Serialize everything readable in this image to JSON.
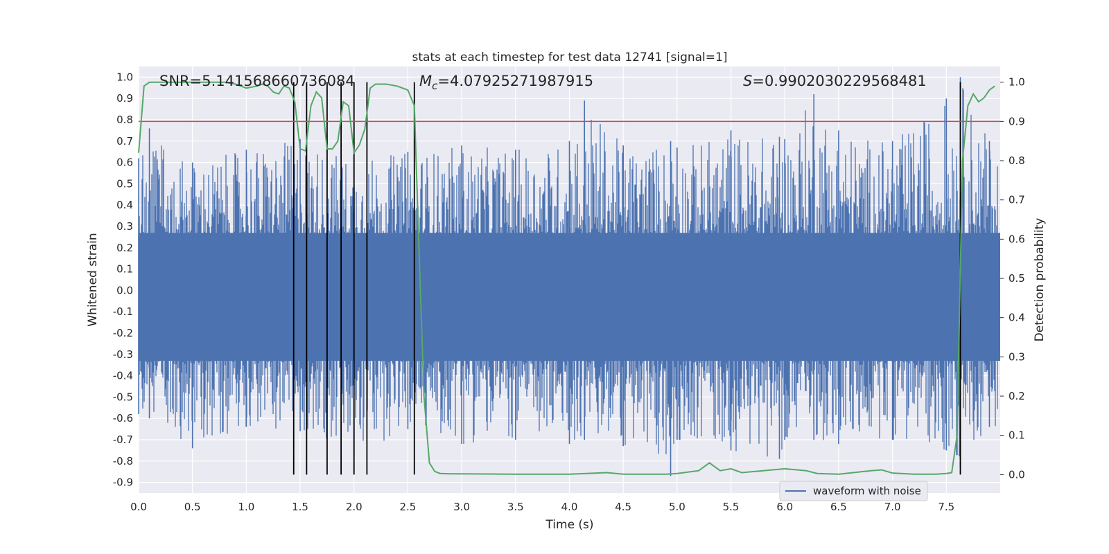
{
  "chart_data": {
    "type": "line",
    "title": "stats at each timestep for test data 12741 [signal=1]",
    "xlabel": "Time (s)",
    "ylabel": "Whitened strain",
    "ylabel_right": "Detection probability",
    "xlim": [
      0.0,
      8.0
    ],
    "ylim": [
      -0.95,
      1.05
    ],
    "ylim_right": [
      -0.047,
      1.04
    ],
    "x_ticks": [
      "0.0",
      "0.5",
      "1.0",
      "1.5",
      "2.0",
      "2.5",
      "3.0",
      "3.5",
      "4.0",
      "4.5",
      "5.0",
      "5.5",
      "6.0",
      "6.5",
      "7.0",
      "7.5"
    ],
    "y_ticks": [
      "1.0",
      "0.9",
      "0.8",
      "0.7",
      "0.6",
      "0.5",
      "0.4",
      "0.3",
      "0.2",
      "0.1",
      "0.0",
      "-0.1",
      "-0.2",
      "-0.3",
      "-0.4",
      "-0.5",
      "-0.6",
      "-0.7",
      "-0.8",
      "-0.9"
    ],
    "y_ticks_right": [
      "1.0",
      "0.9",
      "0.8",
      "0.7",
      "0.6",
      "0.5",
      "0.4",
      "0.3",
      "0.2",
      "0.1",
      "0.0"
    ],
    "grid": true,
    "legend_position": "lower-right",
    "annotations": {
      "snr": "SNR=5.141568660736084",
      "mc_symbol": "M",
      "mc_subscript": "c",
      "mc_value": "=4.07925271987915",
      "s_symbol": "S",
      "s_value": "=0.9902030229568481"
    },
    "threshold_line": {
      "value": 0.9,
      "axis": "right",
      "color": "#c44e52"
    },
    "vertical_lines_x": [
      1.44,
      1.56,
      1.75,
      1.88,
      2.0,
      2.12,
      2.56,
      7.63
    ],
    "series": [
      {
        "name": "waveform with noise",
        "color": "#4c72b0",
        "description": "dense noisy whitened strain, roughly -0.6..0.6 with spikes",
        "envelope_points_x": [
          0.0,
          0.1,
          0.5,
          1.0,
          1.5,
          2.0,
          2.5,
          3.0,
          3.5,
          4.0,
          4.14,
          4.5,
          4.94,
          5.0,
          5.5,
          5.95,
          6.0,
          6.27,
          6.5,
          7.0,
          7.5,
          7.63,
          7.9
        ],
        "envelope_max": [
          0.62,
          0.76,
          0.6,
          0.66,
          0.71,
          0.62,
          0.65,
          0.68,
          0.66,
          0.7,
          0.89,
          0.68,
          0.7,
          0.67,
          0.75,
          0.72,
          0.71,
          0.92,
          0.75,
          0.7,
          0.9,
          1.0,
          0.7
        ],
        "envelope_min": [
          -0.58,
          -0.6,
          -0.74,
          -0.64,
          -0.66,
          -0.78,
          -0.65,
          -0.72,
          -0.7,
          -0.72,
          -0.7,
          -0.73,
          -0.87,
          -0.7,
          -0.75,
          -0.79,
          -0.7,
          -0.7,
          -0.72,
          -0.7,
          -0.75,
          -0.83,
          -0.64
        ]
      },
      {
        "name": "",
        "color": "#55a868",
        "axis": "right",
        "x": [
          0.0,
          0.05,
          0.1,
          0.2,
          0.4,
          0.6,
          0.8,
          0.9,
          1.0,
          1.1,
          1.15,
          1.2,
          1.25,
          1.3,
          1.35,
          1.4,
          1.45,
          1.5,
          1.55,
          1.6,
          1.65,
          1.7,
          1.75,
          1.8,
          1.85,
          1.9,
          1.95,
          2.0,
          2.05,
          2.1,
          2.15,
          2.2,
          2.3,
          2.4,
          2.5,
          2.56,
          2.6,
          2.65,
          2.7,
          2.75,
          2.8,
          2.9,
          3.0,
          3.5,
          4.0,
          4.35,
          4.5,
          4.9,
          5.0,
          5.2,
          5.3,
          5.4,
          5.5,
          5.6,
          5.8,
          6.0,
          6.2,
          6.3,
          6.5,
          6.8,
          6.9,
          7.0,
          7.2,
          7.4,
          7.5,
          7.55,
          7.6,
          7.65,
          7.7,
          7.75,
          7.8,
          7.85,
          7.9,
          7.95
        ],
        "y": [
          0.82,
          0.99,
          1.0,
          1.0,
          1.0,
          1.0,
          1.0,
          0.995,
          0.985,
          0.99,
          0.995,
          0.99,
          0.975,
          0.97,
          0.99,
          0.985,
          0.95,
          0.83,
          0.825,
          0.94,
          0.975,
          0.96,
          0.83,
          0.83,
          0.85,
          0.95,
          0.94,
          0.82,
          0.84,
          0.88,
          0.985,
          0.995,
          0.995,
          0.99,
          0.98,
          0.94,
          0.6,
          0.2,
          0.03,
          0.008,
          0.003,
          0.002,
          0.002,
          0.001,
          0.001,
          0.005,
          0.001,
          0.001,
          0.003,
          0.01,
          0.03,
          0.01,
          0.015,
          0.005,
          0.01,
          0.015,
          0.01,
          0.003,
          0.001,
          0.01,
          0.012,
          0.004,
          0.001,
          0.001,
          0.003,
          0.005,
          0.1,
          0.8,
          0.94,
          0.97,
          0.95,
          0.96,
          0.98,
          0.99
        ]
      }
    ]
  }
}
